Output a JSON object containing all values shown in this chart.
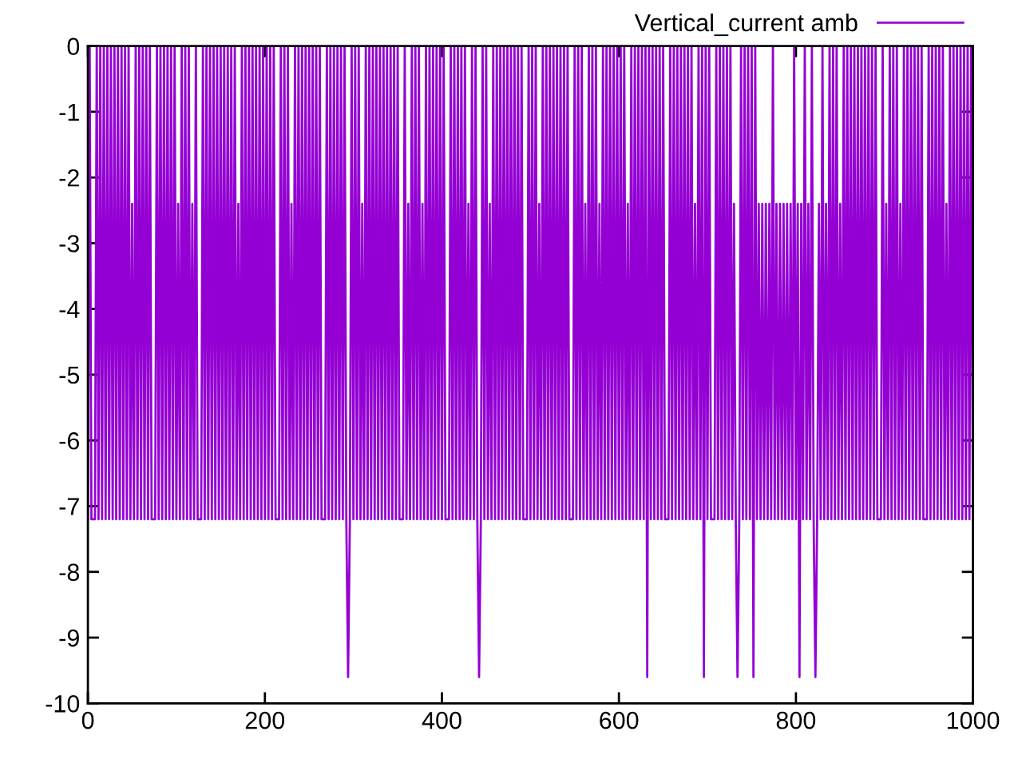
{
  "chart_data": {
    "type": "line",
    "xlim": [
      0,
      1000
    ],
    "ylim": [
      -10,
      0
    ],
    "xticks": [
      0,
      200,
      400,
      600,
      800,
      1000
    ],
    "yticks": [
      -10,
      -9,
      -8,
      -7,
      -6,
      -5,
      -4,
      -3,
      -2,
      -1,
      0
    ],
    "grid": false,
    "legend": "top right",
    "marker": "none",
    "line_style": "solid",
    "series": [
      {
        "name": "Vertical_current amb",
        "color": "#9400d3",
        "x": [
          0,
          2,
          4,
          6,
          8,
          10,
          12,
          14,
          16,
          18,
          20,
          22,
          24,
          26,
          28,
          30,
          32,
          34,
          36,
          38,
          40,
          42,
          44,
          46,
          48,
          50,
          52,
          54,
          56,
          58,
          60,
          62,
          64,
          66,
          68,
          70,
          72,
          74,
          76,
          78,
          80,
          82,
          84,
          86,
          88,
          90,
          92,
          94,
          96,
          98,
          100,
          102,
          104,
          106,
          108,
          110,
          112,
          114,
          116,
          118,
          120,
          122,
          124,
          126,
          128,
          130,
          132,
          134,
          136,
          138,
          140,
          142,
          144,
          146,
          148,
          150,
          152,
          154,
          156,
          158,
          160,
          162,
          164,
          166,
          168,
          170,
          172,
          174,
          176,
          178,
          180,
          182,
          184,
          186,
          188,
          190,
          192,
          194,
          196,
          198,
          200,
          202,
          204,
          206,
          208,
          210,
          212,
          214,
          216,
          218,
          220,
          222,
          224,
          226,
          228,
          230,
          232,
          234,
          236,
          238,
          240,
          242,
          244,
          246,
          248,
          250,
          252,
          254,
          256,
          258,
          260,
          262,
          264,
          266,
          268,
          270,
          272,
          274,
          276,
          278,
          280,
          282,
          284,
          286,
          288,
          290,
          292,
          294,
          296,
          298,
          300,
          302,
          304,
          306,
          308,
          310,
          312,
          314,
          316,
          318,
          320,
          322,
          324,
          326,
          328,
          330,
          332,
          334,
          336,
          338,
          340,
          342,
          344,
          346,
          348,
          350,
          352,
          354,
          356,
          358,
          360,
          362,
          364,
          366,
          368,
          370,
          372,
          374,
          376,
          378,
          380,
          382,
          384,
          386,
          388,
          390,
          392,
          394,
          396,
          398,
          400,
          402,
          404,
          406,
          408,
          410,
          412,
          414,
          416,
          418,
          420,
          422,
          424,
          426,
          428,
          430,
          432,
          434,
          436,
          438,
          440,
          442,
          444,
          446,
          448,
          450,
          452,
          454,
          456,
          458,
          460,
          462,
          464,
          466,
          468,
          470,
          472,
          474,
          476,
          478,
          480,
          482,
          484,
          486,
          488,
          490,
          492,
          494,
          496,
          498,
          500,
          502,
          504,
          506,
          508,
          510,
          512,
          514,
          516,
          518,
          520,
          522,
          524,
          526,
          528,
          530,
          532,
          534,
          536,
          538,
          540,
          542,
          544,
          546,
          548,
          550,
          552,
          554,
          556,
          558,
          560,
          562,
          564,
          566,
          568,
          570,
          572,
          574,
          576,
          578,
          580,
          582,
          584,
          586,
          588,
          590,
          592,
          594,
          596,
          598,
          600,
          602,
          604,
          606,
          608,
          610,
          612,
          614,
          616,
          618,
          620,
          622,
          624,
          626,
          628,
          630,
          632,
          634,
          636,
          638,
          640,
          642,
          644,
          646,
          648,
          650,
          652,
          654,
          656,
          658,
          660,
          662,
          664,
          666,
          668,
          670,
          672,
          674,
          676,
          678,
          680,
          682,
          684,
          686,
          688,
          690,
          692,
          694,
          696,
          698,
          700,
          702,
          704,
          706,
          708,
          710,
          712,
          714,
          716,
          718,
          720,
          722,
          724,
          726,
          728,
          730,
          732,
          734,
          736,
          738,
          740,
          742,
          744,
          746,
          748,
          750,
          752,
          754,
          756,
          758,
          760,
          762,
          764,
          766,
          768,
          770,
          772,
          774,
          776,
          778,
          780,
          782,
          784,
          786,
          788,
          790,
          792,
          794,
          796,
          798,
          800,
          802,
          804,
          806,
          808,
          810,
          812,
          814,
          816,
          818,
          820,
          822,
          824,
          826,
          828,
          830,
          832,
          834,
          836,
          838,
          840,
          842,
          844,
          846,
          848,
          850,
          852,
          854,
          856,
          858,
          860,
          862,
          864,
          866,
          868,
          870,
          872,
          874,
          876,
          878,
          880,
          882,
          884,
          886,
          888,
          890,
          892,
          894,
          896,
          898,
          900,
          902,
          904,
          906,
          908,
          910,
          912,
          914,
          916,
          918,
          920,
          922,
          924,
          926,
          928,
          930,
          932,
          934,
          936,
          938,
          940,
          942,
          944,
          946,
          948,
          950,
          952,
          954,
          956,
          958,
          960,
          962,
          964,
          966,
          968,
          970,
          972,
          974,
          976,
          978,
          980,
          982,
          984,
          986,
          988,
          990,
          992,
          994,
          996,
          998,
          1000
        ],
        "values": [
          -7.2,
          0,
          -7.2,
          -7.2,
          -7.2,
          0,
          -7.2,
          0,
          -7.2,
          0,
          -7.2,
          0,
          -7.2,
          0,
          -7.2,
          0,
          -7.2,
          0,
          -7.2,
          0,
          -7.2,
          0,
          -7.2,
          0,
          -7.2,
          -2.4,
          -7.2,
          0,
          -7.2,
          0,
          -7.2,
          0,
          -7.2,
          0,
          -7.2,
          0,
          -7.2,
          -7.2,
          -7.2,
          0,
          -7.2,
          0,
          -7.2,
          0,
          -7.2,
          0,
          -7.2,
          0,
          -7.2,
          0,
          -7.2,
          -2.4,
          -7.2,
          0,
          -7.2,
          0,
          -7.2,
          0,
          -7.2,
          -2.4,
          -7.2,
          0,
          -7.2,
          -7.2,
          -7.2,
          0,
          -7.2,
          0,
          -7.2,
          0,
          -7.2,
          0,
          -7.2,
          0,
          -7.2,
          0,
          -7.2,
          0,
          -7.2,
          0,
          -7.2,
          0,
          -7.2,
          0,
          -7.2,
          -2.4,
          -7.2,
          0,
          -7.2,
          0,
          -7.2,
          0,
          -7.2,
          0,
          -7.2,
          0,
          -7.2,
          0,
          -7.2,
          0,
          -7.2,
          0,
          -7.2,
          0,
          -7.2,
          0,
          -7.2,
          -7.2,
          -7.2,
          0,
          -7.2,
          0,
          -7.2,
          0,
          -7.2,
          -2.4,
          -7.2,
          0,
          -7.2,
          0,
          -7.2,
          0,
          -7.2,
          0,
          -7.2,
          0,
          -7.2,
          0,
          -7.2,
          0,
          -7.2,
          0,
          -7.2,
          -7.2,
          -7.2,
          0,
          -7.2,
          0,
          -7.2,
          0,
          -7.2,
          0,
          -7.2,
          0,
          -7.2,
          0,
          -7.2,
          -9.6,
          -7.2,
          0,
          -7.2,
          0,
          -7.2,
          0,
          -7.2,
          -2.4,
          -7.2,
          0,
          -7.2,
          0,
          -7.2,
          0,
          -7.2,
          0,
          -7.2,
          0,
          -7.2,
          0,
          -7.2,
          0,
          -7.2,
          0,
          -7.2,
          0,
          -7.2,
          0,
          -7.2,
          -7.2,
          -7.2,
          0,
          -7.2,
          -2.4,
          -7.2,
          0,
          -7.2,
          0,
          -7.2,
          0,
          -7.2,
          -2.4,
          -7.2,
          0,
          -7.2,
          0,
          -7.2,
          0,
          -7.2,
          0,
          -7.2,
          0,
          -7.2,
          0,
          -7.2,
          -7.2,
          -7.2,
          0,
          -7.2,
          0,
          -7.2,
          0,
          -7.2,
          0,
          -7.2,
          0,
          -7.2,
          -2.4,
          -7.2,
          0,
          -7.2,
          0,
          -7.2,
          -9.6,
          -7.2,
          0,
          -7.2,
          0,
          -7.2,
          -2.4,
          -7.2,
          0,
          -7.2,
          0,
          -7.2,
          0,
          -7.2,
          0,
          -7.2,
          0,
          -7.2,
          0,
          -7.2,
          0,
          -7.2,
          0,
          -7.2,
          0,
          -7.2,
          -7.2,
          -7.2,
          0,
          -7.2,
          0,
          -7.2,
          0,
          -7.2,
          -2.4,
          -7.2,
          0,
          -7.2,
          0,
          -7.2,
          0,
          -7.2,
          0,
          -7.2,
          0,
          -7.2,
          0,
          -7.2,
          0,
          -7.2,
          0,
          -7.2,
          -7.2,
          -7.2,
          0,
          -7.2,
          0,
          -7.2,
          0,
          -7.2,
          -2.4,
          -7.2,
          0,
          -7.2,
          0,
          -7.2,
          0,
          -7.2,
          -2.4,
          -7.2,
          0,
          -7.2,
          0,
          -7.2,
          0,
          -7.2,
          0,
          -7.2,
          0,
          -7.2,
          0,
          -7.2,
          0,
          -7.2,
          -2.4,
          -7.2,
          0,
          -7.2,
          0,
          -7.2,
          0,
          -7.2,
          0,
          -7.2,
          0,
          -9.6,
          0,
          -7.2,
          0,
          -7.2,
          0,
          -7.2,
          0,
          -7.2,
          0,
          -7.2,
          -7.2,
          -7.2,
          0,
          -7.2,
          0,
          -7.2,
          0,
          -7.2,
          0,
          -7.2,
          0,
          -7.2,
          0,
          -7.2,
          0,
          -7.2,
          -2.4,
          -7.2,
          0,
          -7.2,
          0,
          -9.6,
          0,
          -7.2,
          0,
          -7.2,
          -7.2,
          -7.2,
          0,
          -7.2,
          0,
          -7.2,
          0,
          -7.2,
          0,
          -7.2,
          0,
          -7.2,
          -2.4,
          -7.2,
          -9.6,
          -7.2,
          0,
          -7.2,
          0,
          -7.2,
          0,
          -7.2,
          0,
          -9.6,
          0,
          -7.2,
          -2.4,
          -7.2,
          -2.4,
          -7.2,
          -2.4,
          -7.2,
          -2.4,
          -7.2,
          0,
          -7.2,
          -2.4,
          -7.2,
          -2.4,
          -7.2,
          -2.4,
          -7.2,
          -2.4,
          -7.2,
          -2.4,
          -7.2,
          0,
          -7.2,
          -2.4,
          -9.6,
          -2.4,
          -7.2,
          0,
          -7.2,
          -2.4,
          -7.2,
          0,
          -7.2,
          -9.6,
          -7.2,
          -2.4,
          -7.2,
          0,
          -7.2,
          -2.4,
          -7.2,
          0,
          -7.2,
          0,
          -7.2,
          0,
          -7.2,
          -2.4,
          -7.2,
          0,
          -7.2,
          0,
          -7.2,
          0,
          -7.2,
          0,
          -7.2,
          0,
          -7.2,
          0,
          -7.2,
          0,
          -7.2,
          0,
          -7.2,
          0,
          -7.2,
          0,
          -7.2,
          -7.2,
          -7.2,
          0,
          -7.2,
          -2.4,
          -7.2,
          0,
          -7.2,
          0,
          -7.2,
          0,
          -7.2,
          -2.4,
          -7.2,
          0,
          -7.2,
          0,
          -7.2,
          0,
          -7.2,
          0,
          -7.2,
          0,
          -7.2,
          0,
          -7.2,
          -7.2,
          -7.2,
          0,
          -7.2,
          0,
          -7.2,
          0,
          -7.2,
          0,
          -7.2,
          0,
          -7.2,
          -2.4,
          -7.2,
          0,
          -7.2,
          0,
          -7.2,
          0,
          -7.2,
          0,
          -7.2,
          0,
          -7.2,
          0,
          -7.2,
          0,
          -7.2
        ]
      }
    ]
  }
}
